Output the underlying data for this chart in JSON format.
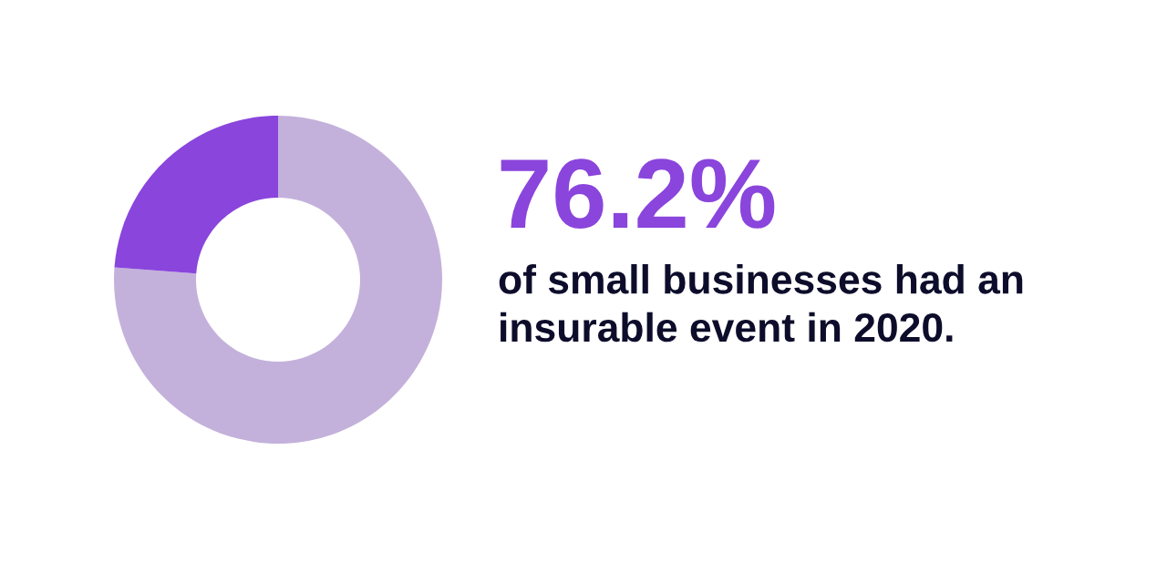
{
  "chart_data": {
    "type": "donut",
    "title": "76.2%",
    "subtitle": "of small businesses had an insurable event in 2020.",
    "categories": [
      null,
      null
    ],
    "values": [
      76.2,
      23.8
    ],
    "colors": [
      "#c3b1db",
      "#8a45dc"
    ]
  }
}
